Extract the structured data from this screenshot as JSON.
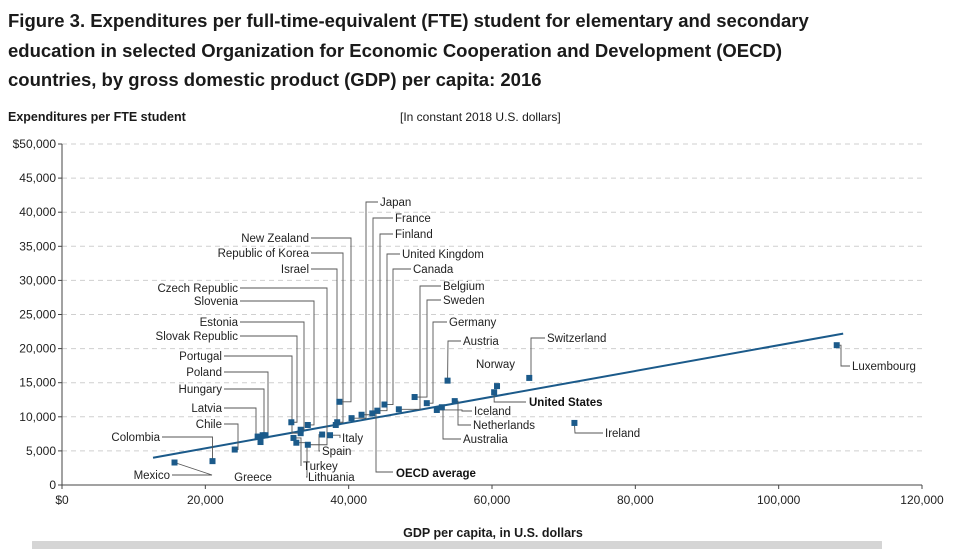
{
  "figure": {
    "title_lines": [
      "Figure 3. Expenditures per full-time-equivalent (FTE) student for elementary and secondary",
      "education in selected Organization for Economic Cooperation and Development (OECD)",
      "countries, by gross domestic product (GDP) per capita: 2016"
    ]
  },
  "colors": {
    "accent": "#1b5a8a",
    "grid": "#cfcfcf",
    "text": "#222222",
    "leader": "#555555"
  },
  "chart_data": {
    "type": "scatter",
    "title": "Expenditures per full-time-equivalent (FTE) student for elementary and secondary education in selected OECD countries, by gross domestic product (GDP) per capita: 2016",
    "ylabel": "Expenditures per FTE student",
    "units_note": "[In constant 2018 U.S. dollars]",
    "xlabel": "GDP per capita, in U.S. dollars",
    "xlim": [
      0,
      120000
    ],
    "ylim": [
      0,
      50000
    ],
    "x_ticks": [
      {
        "value": 0,
        "label": "$0"
      },
      {
        "value": 20000,
        "label": "20,000"
      },
      {
        "value": 40000,
        "label": "40,000"
      },
      {
        "value": 60000,
        "label": "60,000"
      },
      {
        "value": 80000,
        "label": "80,000"
      },
      {
        "value": 100000,
        "label": "100,000"
      },
      {
        "value": 120000,
        "label": "120,000"
      }
    ],
    "y_ticks": [
      {
        "value": 0,
        "label": "0"
      },
      {
        "value": 5000,
        "label": "5,000"
      },
      {
        "value": 10000,
        "label": "10,000"
      },
      {
        "value": 15000,
        "label": "15,000"
      },
      {
        "value": 20000,
        "label": "20,000"
      },
      {
        "value": 25000,
        "label": "25,000"
      },
      {
        "value": 30000,
        "label": "30,000"
      },
      {
        "value": 35000,
        "label": "35,000"
      },
      {
        "value": 40000,
        "label": "40,000"
      },
      {
        "value": 45000,
        "label": "45,000"
      },
      {
        "value": 50000,
        "label": "$50,000"
      }
    ],
    "grid": "horizontal dashed",
    "trend_line": {
      "label": "OECD average",
      "x": [
        12700,
        109000
      ],
      "y": [
        4000,
        22200
      ]
    },
    "points": [
      {
        "country": "Mexico",
        "x": 15700,
        "y": 3300
      },
      {
        "country": "Colombia",
        "x": 21000,
        "y": 3500
      },
      {
        "country": "Chile",
        "x": 24100,
        "y": 5200
      },
      {
        "country": "Latvia",
        "x": 27300,
        "y": 7100
      },
      {
        "country": "Greece",
        "x": 27700,
        "y": 6300
      },
      {
        "country": "Hungary",
        "x": 28000,
        "y": 7300
      },
      {
        "country": "Poland",
        "x": 28400,
        "y": 7300
      },
      {
        "country": "Turkey",
        "x": 32300,
        "y": 6900
      },
      {
        "country": "Lithuania",
        "x": 32700,
        "y": 6200
      },
      {
        "country": "Slovak Republic",
        "x": 32000,
        "y": 9200
      },
      {
        "country": "Portugal",
        "x": 33300,
        "y": 7600
      },
      {
        "country": "Estonia",
        "x": 33300,
        "y": 8100
      },
      {
        "country": "Slovenia",
        "x": 34300,
        "y": 8800
      },
      {
        "country": "Czech Republic",
        "x": 34300,
        "y": 5900
      },
      {
        "country": "Israel",
        "x": 38200,
        "y": 8800
      },
      {
        "country": "Italy",
        "x": 37400,
        "y": 7300
      },
      {
        "country": "Spain",
        "x": 36300,
        "y": 7400
      },
      {
        "country": "Republic of Korea",
        "x": 38400,
        "y": 9200
      },
      {
        "country": "New Zealand",
        "x": 38700,
        "y": 12200
      },
      {
        "country": "Japan",
        "x": 40400,
        "y": 9800
      },
      {
        "country": "France",
        "x": 41800,
        "y": 10300
      },
      {
        "country": "Finland",
        "x": 43300,
        "y": 10500
      },
      {
        "country": "United Kingdom",
        "x": 44000,
        "y": 10900
      },
      {
        "country": "Canada",
        "x": 45000,
        "y": 11800
      },
      {
        "country": "Belgium",
        "x": 47000,
        "y": 11100
      },
      {
        "country": "Sweden",
        "x": 49200,
        "y": 12900
      },
      {
        "country": "Germany",
        "x": 50900,
        "y": 12000
      },
      {
        "country": "Iceland",
        "x": 52300,
        "y": 11000
      },
      {
        "country": "Australia",
        "x": 53000,
        "y": 11400
      },
      {
        "country": "Netherlands",
        "x": 54800,
        "y": 12300
      },
      {
        "country": "Austria",
        "x": 53800,
        "y": 15300
      },
      {
        "country": "Norway",
        "x": 60700,
        "y": 14500
      },
      {
        "country": "United States",
        "x": 60300,
        "y": 13600
      },
      {
        "country": "Switzerland",
        "x": 65200,
        "y": 15700
      },
      {
        "country": "Ireland",
        "x": 71500,
        "y": 9100
      },
      {
        "country": "Luxembourg",
        "x": 108100,
        "y": 20500
      }
    ],
    "callouts": [
      {
        "text": "OECD average",
        "bold": true
      },
      {
        "text": "United States",
        "bold": true
      }
    ]
  }
}
